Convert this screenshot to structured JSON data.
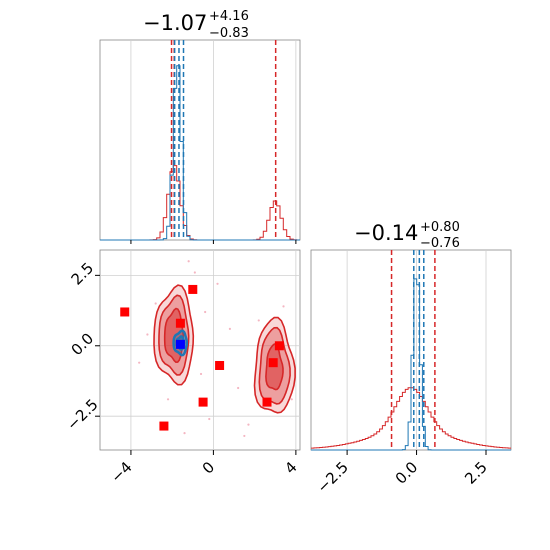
{
  "figure": {
    "title_hist_x": "−1.07",
    "title_hist_x_sup": "+4.16",
    "title_hist_x_sub": "−0.83",
    "title_hist_y": "−0.14",
    "title_hist_y_sup": "+0.80",
    "title_hist_y_sub": "−0.76"
  },
  "chart_data": [
    {
      "type": "histogram",
      "panel": "top-left marginal of parameter 1",
      "xlim": [
        -5.5,
        4.2
      ],
      "grid": true,
      "series": [
        {
          "name": "",
          "color": "#d62728",
          "peaks": [
            {
              "center": -1.9,
              "width": 0.18,
              "height": 1.0
            },
            {
              "center": 3.0,
              "width": 0.18,
              "height": 0.52
            }
          ],
          "quantile_lines": [
            -1.9,
            3.02,
            -2.03
          ]
        },
        {
          "name": "",
          "color": "#1f77b4",
          "peaks": [
            {
              "center": -1.75,
              "width": 0.12,
              "height": 1.0
            }
          ],
          "quantile_lines": [
            -1.88,
            -1.45,
            -1.67
          ]
        }
      ]
    },
    {
      "type": "scatter",
      "panel": "bottom-left 2D posterior",
      "xlim": [
        -5.5,
        4.2
      ],
      "ylim": [
        -3.7,
        3.4
      ],
      "xticks": [
        "−4",
        "0",
        "4"
      ],
      "xtick_values": [
        -4,
        0,
        4
      ],
      "yticks": [
        "2.5",
        "0.0",
        "−2.5"
      ],
      "ytick_values": [
        2.5,
        0.0,
        -2.5
      ],
      "grid": true,
      "contours": [
        {
          "color": "#d62728",
          "cx": -1.9,
          "cy": 0.35,
          "levels": [
            [
              0.95,
              1.15
            ],
            [
              0.72,
              0.92
            ],
            [
              0.45,
              0.62
            ]
          ]
        },
        {
          "color": "#d62728",
          "cx": 2.95,
          "cy": -0.8,
          "levels": [
            [
              0.95,
              1.15
            ],
            [
              0.72,
              0.92
            ],
            [
              0.4,
              0.55
            ]
          ]
        },
        {
          "color": "#1f77b4",
          "cx": -1.6,
          "cy": 0.1,
          "levels": [
            [
              0.32,
              0.28
            ],
            [
              0.18,
              0.15
            ]
          ]
        }
      ],
      "markers": [
        {
          "x": -4.3,
          "y": 1.2,
          "color": "#ff0000"
        },
        {
          "x": -1.0,
          "y": 2.0,
          "color": "#ff0000"
        },
        {
          "x": -1.6,
          "y": 0.8,
          "color": "#ff0000"
        },
        {
          "x": 0.3,
          "y": -0.7,
          "color": "#ff0000"
        },
        {
          "x": -0.5,
          "y": -2.0,
          "color": "#ff0000"
        },
        {
          "x": -2.4,
          "y": -2.85,
          "color": "#ff0000"
        },
        {
          "x": 2.6,
          "y": -2.0,
          "color": "#ff0000"
        },
        {
          "x": 2.9,
          "y": -0.6,
          "color": "#ff0000"
        },
        {
          "x": 3.2,
          "y": 0.0,
          "color": "#ff0000"
        },
        {
          "x": -1.6,
          "y": 0.05,
          "color": "#0000ff"
        }
      ]
    },
    {
      "type": "histogram",
      "panel": "right marginal of parameter 2",
      "xlim": [
        -3.8,
        3.4
      ],
      "xticks": [
        "−2.5",
        "0.0",
        "2.5"
      ],
      "xtick_values": [
        -2.5,
        0.0,
        2.5
      ],
      "grid": true,
      "series": [
        {
          "name": "",
          "color": "#d62728",
          "shape": "broad peak centered near -0.2 with long tails",
          "quantile_lines": [
            -0.9,
            0.66
          ]
        },
        {
          "name": "",
          "color": "#1f77b4",
          "shape": "narrow peak centered near 0",
          "quantile_lines": [
            -0.1,
            0.1,
            0.26
          ]
        }
      ]
    }
  ]
}
